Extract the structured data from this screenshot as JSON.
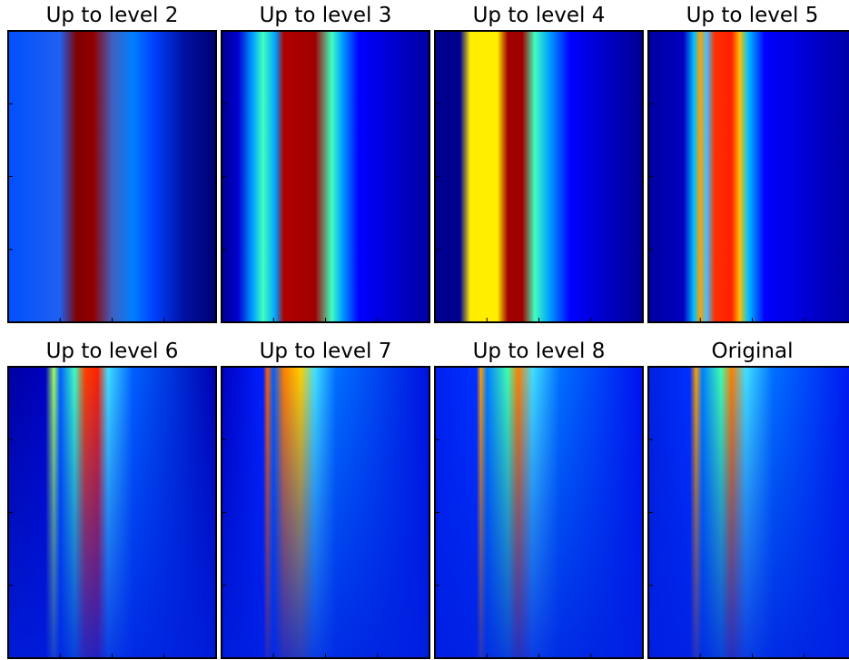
{
  "panels": [
    {
      "title": "Up to level 2"
    },
    {
      "title": "Up to level 3"
    },
    {
      "title": "Up to level 4"
    },
    {
      "title": "Up to level 5"
    },
    {
      "title": "Up to level 6"
    },
    {
      "title": "Up to level 7"
    },
    {
      "title": "Up to level 8"
    },
    {
      "title": "Original"
    }
  ]
}
